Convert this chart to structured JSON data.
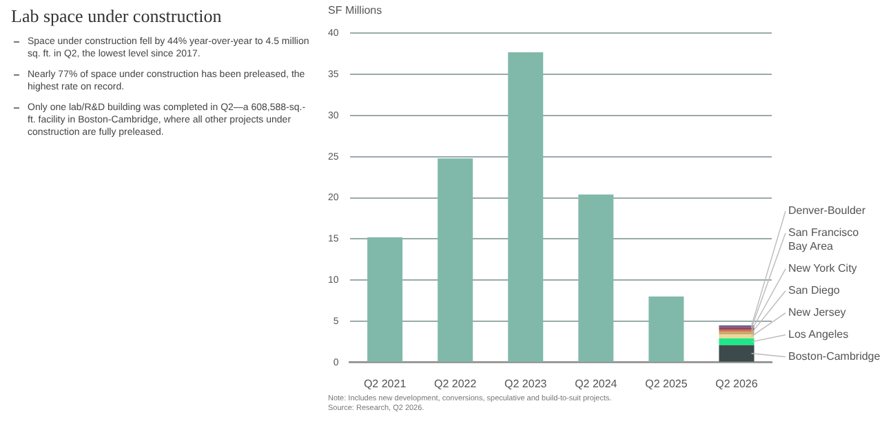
{
  "chart_data": {
    "type": "bar",
    "title": "Lab space under construction",
    "ylabel": "SF Millions",
    "annotations": [
      "Space under construction fell by 44% year-over-year to 4.5 million sq. ft. in Q2, the lowest level since 2017.",
      "Nearly 77% of space under construction has been preleased, the highest rate on record.",
      "Only one lab/R&D building was completed in Q2—a 608,588-sq.-ft. facility in Boston-Cambridge, where all other projects under construction are fully preleased.",
      "Note: Includes new development, conversions, speculative and build-to-suit projects.",
      "Source: Research, Q2 2026."
    ],
    "categories": [
      "Q2 2021",
      "Q2 2022",
      "Q2 2023",
      "Q2 2024",
      "Q2 2025",
      "Q2 2026"
    ],
    "stacked": true,
    "series": [
      {
        "color": "#80b9aa",
        "values": [
          15.2,
          24.8,
          37.7,
          20.4,
          8.0,
          null
        ]
      },
      {
        "name": "Boston-Cambridge",
        "color": "#3d4a4c",
        "values": [
          null,
          null,
          null,
          null,
          null,
          2.1
        ]
      },
      {
        "name": "Los Angeles",
        "color": "#1de88a",
        "values": [
          null,
          null,
          null,
          null,
          null,
          0.8
        ]
      },
      {
        "name": "New Jersey",
        "color": "#e8d89a",
        "values": [
          null,
          null,
          null,
          null,
          null,
          0.5
        ]
      },
      {
        "name": "San Diego",
        "color": "#c9a86a",
        "values": [
          null,
          null,
          null,
          null,
          null,
          0.3
        ]
      },
      {
        "name": "New York City",
        "color": "#d4704c",
        "values": [
          null,
          null,
          null,
          null,
          null,
          0.3
        ]
      },
      {
        "name": "San Francisco Bay Area",
        "color": "#8a4a6a",
        "values": [
          null,
          null,
          null,
          null,
          null,
          0.3
        ]
      },
      {
        "name": "Denver-Boulder",
        "color": "#6a5a9a",
        "values": [
          null,
          null,
          null,
          null,
          null,
          0.2
        ]
      }
    ],
    "ylim": [
      0,
      40
    ],
    "yticks": [
      0,
      5,
      10,
      15,
      20,
      25,
      30,
      35,
      40
    ],
    "grid": "y",
    "legend": false
  }
}
